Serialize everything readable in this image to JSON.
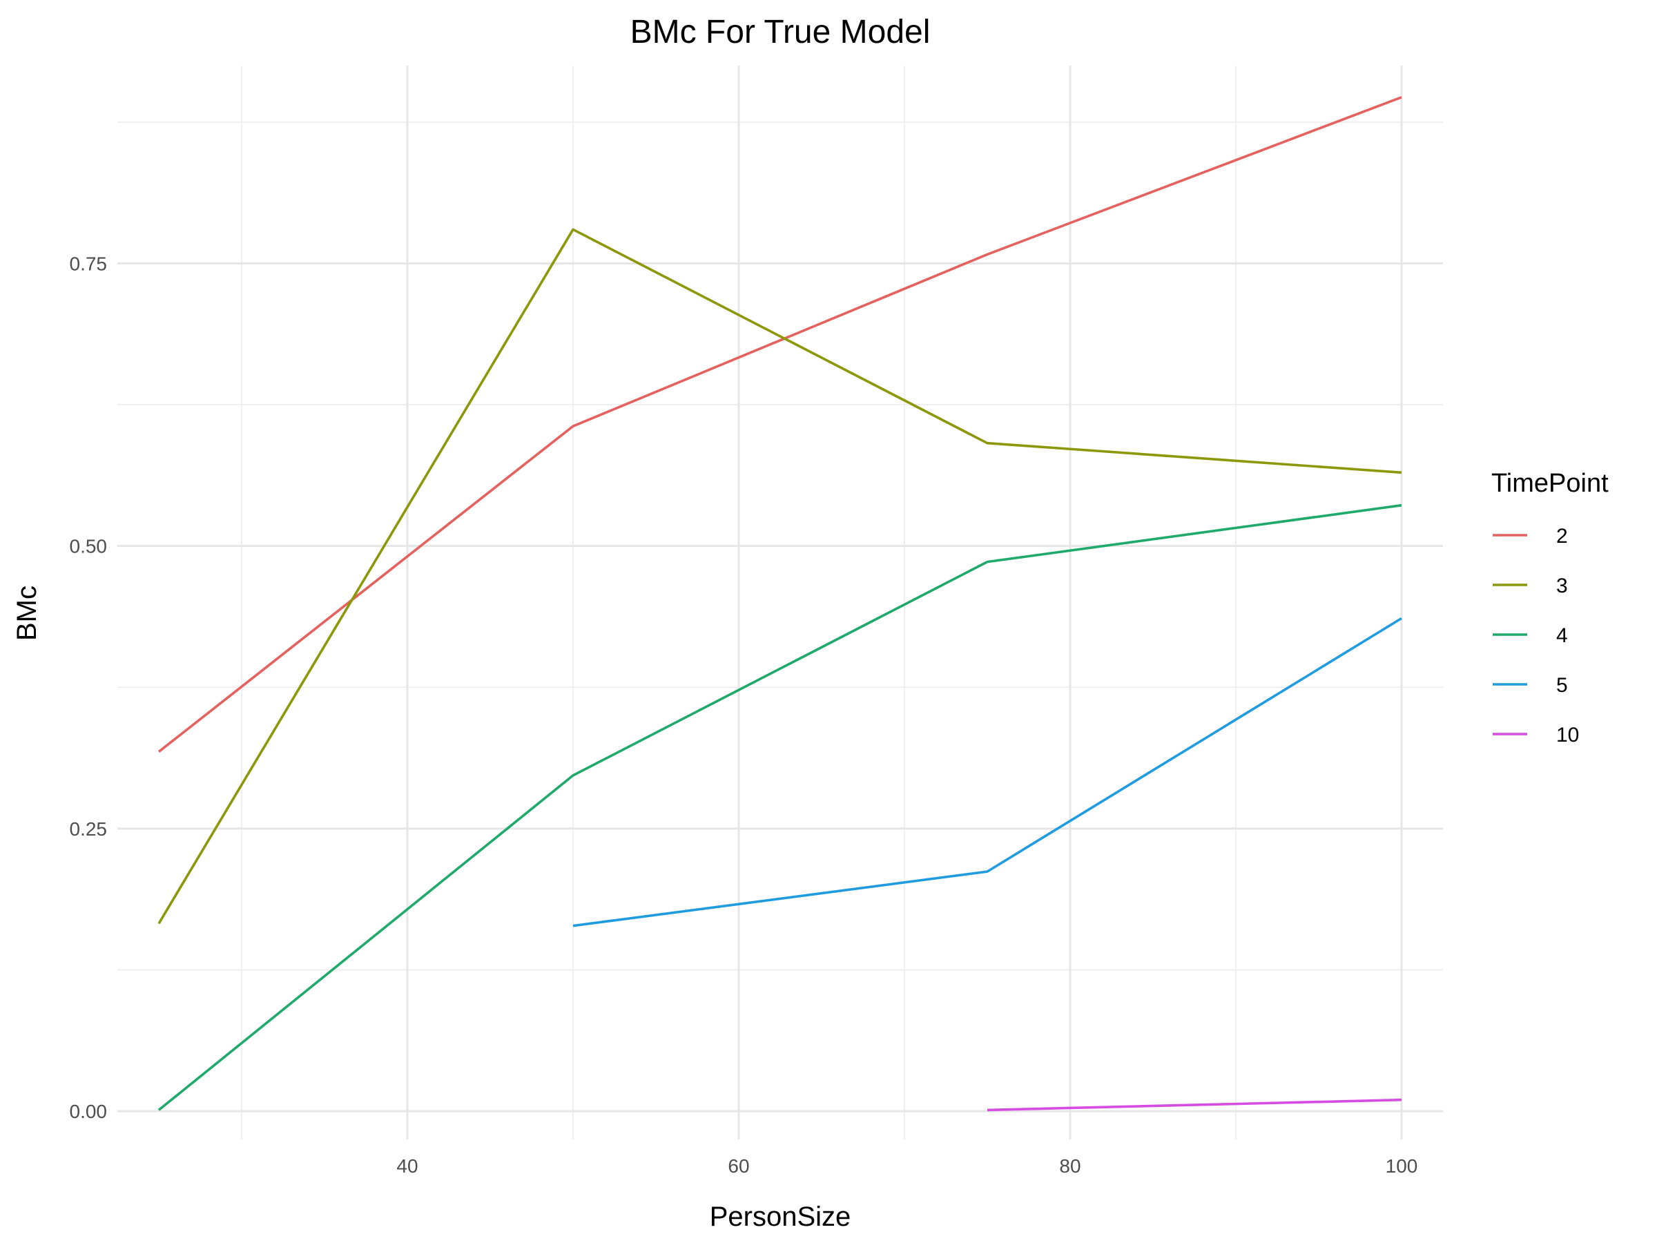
{
  "chart_data": {
    "type": "line",
    "title": "BMc For True Model",
    "xlabel": "PersonSize",
    "ylabel": "BMc",
    "xlim": [
      22.5,
      102.5
    ],
    "ylim": [
      -0.025,
      0.925
    ],
    "x_ticks": [
      40,
      60,
      80,
      100
    ],
    "x_tick_labels": [
      "40",
      "60",
      "80",
      "100"
    ],
    "x_minor_ticks": [
      30,
      50,
      70,
      90
    ],
    "y_ticks": [
      0,
      0.25,
      0.5,
      0.75
    ],
    "y_tick_labels": [
      "0.00",
      "0.25",
      "0.50",
      "0.75"
    ],
    "y_minor_ticks": [
      0.125,
      0.375,
      0.625,
      0.875
    ],
    "grid": true,
    "legend": {
      "title": "TimePoint",
      "position": "right"
    },
    "series": [
      {
        "name": "2",
        "color": "#e5615e",
        "x": [
          25,
          50,
          75,
          100
        ],
        "y": [
          0.318,
          0.606,
          0.758,
          0.897
        ]
      },
      {
        "name": "3",
        "color": "#8c970a",
        "x": [
          25,
          50,
          75,
          100
        ],
        "y": [
          0.166,
          0.78,
          0.591,
          0.565
        ]
      },
      {
        "name": "4",
        "color": "#1faa6c",
        "x": [
          25,
          50,
          75,
          100
        ],
        "y": [
          0.001,
          0.297,
          0.486,
          0.536
        ]
      },
      {
        "name": "5",
        "color": "#1f9bdf",
        "x": [
          50,
          75,
          100
        ],
        "y": [
          0.164,
          0.212,
          0.436
        ]
      },
      {
        "name": "10",
        "color": "#d64ce3",
        "x": [
          75,
          100
        ],
        "y": [
          0.001,
          0.01
        ]
      }
    ]
  }
}
